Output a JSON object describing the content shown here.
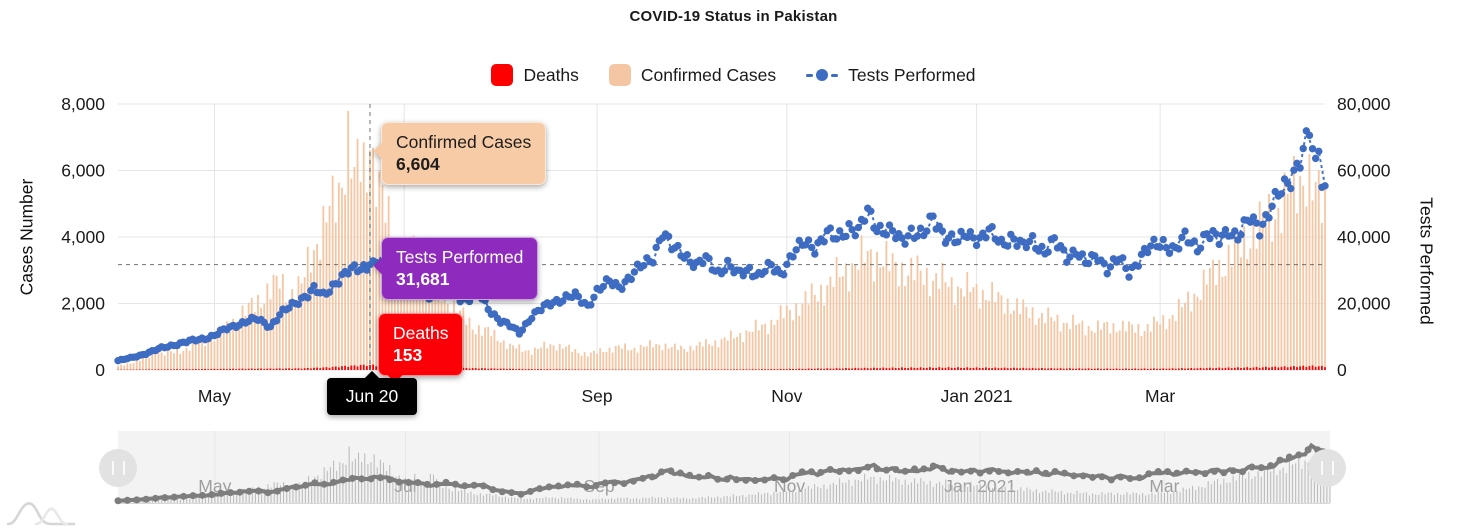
{
  "title": "COVID-19 Status in Pakistan",
  "legend": [
    {
      "label": "Deaths",
      "color": "#ff0000",
      "marker": "square"
    },
    {
      "label": "Confirmed Cases",
      "color": "#f5c6a3",
      "marker": "square"
    },
    {
      "label": "Tests Performed",
      "color": "#3d6cc2",
      "marker": "dash-dot"
    }
  ],
  "colors": {
    "confirmed": "#f5c6a3",
    "deaths": "#ff0000",
    "tests": "#3d6cc2",
    "grid": "#e5e5e5",
    "crosshair": "#5a5a5a",
    "nav_bg": "#f3f3f3",
    "nav_bar": "#b3b3b3",
    "nav_line": "#7d7d7d",
    "nav_label": "#9e9e9e",
    "axis_text": "#1a1a1a"
  },
  "axes": {
    "left": {
      "title": "Cases Number",
      "max": 8000,
      "ticks": [
        {
          "v": 8000,
          "label": "8,000"
        },
        {
          "v": 6000,
          "label": "6,000"
        },
        {
          "v": 4000,
          "label": "4,000"
        },
        {
          "v": 2000,
          "label": "2,000"
        },
        {
          "v": 0,
          "label": "0"
        }
      ]
    },
    "right": {
      "title": "Tests Performed",
      "max": 80000,
      "ticks": [
        {
          "v": 80000,
          "label": "80,000"
        },
        {
          "v": 60000,
          "label": "60,000"
        },
        {
          "v": 40000,
          "label": "40,000"
        },
        {
          "v": 20000,
          "label": "20,000"
        },
        {
          "v": 0,
          "label": "0"
        }
      ]
    },
    "x_gridline_days": [
      31,
      92,
      154,
      215,
      276,
      335
    ],
    "x_main_labels": [
      {
        "text": "May",
        "day": 31
      },
      {
        "text": "Sep",
        "day": 154
      },
      {
        "text": "Nov",
        "day": 215
      },
      {
        "text": "Jan 2021",
        "day": 276
      },
      {
        "text": "Mar",
        "day": 335
      }
    ]
  },
  "navigator": {
    "labels": [
      {
        "text": "May",
        "day": 31
      },
      {
        "text": "Jul",
        "day": 92
      },
      {
        "text": "Sep",
        "day": 154
      },
      {
        "text": "Nov",
        "day": 215
      },
      {
        "text": "Jan 2021",
        "day": 276
      },
      {
        "text": "Mar",
        "day": 335
      }
    ]
  },
  "tooltips": {
    "date": {
      "label": "Jun 20",
      "bg": "#000000",
      "text": "#ffffff"
    },
    "confirmed": {
      "label": "Confirmed Cases",
      "value": "6,604",
      "bg": "#f7cba6",
      "text": "#1d1d1d"
    },
    "tests": {
      "label": "Tests Performed",
      "value": "31,681",
      "bg": "#8e2abd",
      "text": "#ffffff"
    },
    "deaths": {
      "label": "Deaths",
      "value": "153",
      "bg": "#fb0006",
      "text": "#ffffff"
    }
  },
  "highlight": {
    "day": 81,
    "date_label": "Jun 20",
    "confirmed": 6604,
    "tests": 31681,
    "deaths": 153
  },
  "chart_data": {
    "type": "mixed",
    "x_unit": "day index (day 0 = 2020-03-31, day 388 = 2021-04-23)",
    "range_days": 388,
    "left_axis": {
      "label": "Cases Number",
      "range": [
        0,
        8000
      ]
    },
    "right_axis": {
      "label": "Tests Performed",
      "range": [
        0,
        80000
      ]
    },
    "series": [
      {
        "name": "Confirmed Cases",
        "type": "bar",
        "axis": "left",
        "color": "#f5c6a3",
        "points": [
          [
            0,
            120
          ],
          [
            6,
            260
          ],
          [
            10,
            420
          ],
          [
            12,
            780
          ],
          [
            14,
            480
          ],
          [
            18,
            540
          ],
          [
            22,
            640
          ],
          [
            25,
            760
          ],
          [
            28,
            880
          ],
          [
            31,
            1020
          ],
          [
            35,
            1260
          ],
          [
            38,
            1580
          ],
          [
            42,
            1820
          ],
          [
            45,
            2050
          ],
          [
            48,
            2380
          ],
          [
            52,
            2620
          ],
          [
            55,
            2300
          ],
          [
            59,
            2480
          ],
          [
            62,
            3480
          ],
          [
            65,
            4060
          ],
          [
            68,
            4720
          ],
          [
            71,
            5380
          ],
          [
            74,
            6920
          ],
          [
            76,
            5600
          ],
          [
            78,
            6340
          ],
          [
            80,
            5980
          ],
          [
            81,
            6604
          ],
          [
            83,
            5700
          ],
          [
            85,
            4960
          ],
          [
            88,
            4280
          ],
          [
            92,
            3060
          ],
          [
            95,
            3380
          ],
          [
            98,
            2760
          ],
          [
            101,
            3940
          ],
          [
            103,
            2480
          ],
          [
            106,
            2080
          ],
          [
            110,
            1680
          ],
          [
            114,
            1320
          ],
          [
            119,
            1140
          ],
          [
            123,
            920
          ],
          [
            126,
            720
          ],
          [
            130,
            610
          ],
          [
            133,
            580
          ],
          [
            137,
            700
          ],
          [
            140,
            760
          ],
          [
            144,
            680
          ],
          [
            147,
            560
          ],
          [
            151,
            480
          ],
          [
            154,
            520
          ],
          [
            158,
            640
          ],
          [
            161,
            690
          ],
          [
            165,
            620
          ],
          [
            168,
            700
          ],
          [
            172,
            740
          ],
          [
            175,
            760
          ],
          [
            179,
            660
          ],
          [
            182,
            640
          ],
          [
            186,
            720
          ],
          [
            189,
            780
          ],
          [
            193,
            860
          ],
          [
            196,
            940
          ],
          [
            200,
            1060
          ],
          [
            203,
            1160
          ],
          [
            207,
            1300
          ],
          [
            210,
            1420
          ],
          [
            213,
            1620
          ],
          [
            217,
            1820
          ],
          [
            221,
            2060
          ],
          [
            224,
            2260
          ],
          [
            228,
            2520
          ],
          [
            231,
            2780
          ],
          [
            235,
            3060
          ],
          [
            238,
            3240
          ],
          [
            241,
            3420
          ],
          [
            245,
            3380
          ],
          [
            248,
            3160
          ],
          [
            252,
            3020
          ],
          [
            255,
            2940
          ],
          [
            259,
            2880
          ],
          [
            262,
            2740
          ],
          [
            266,
            2620
          ],
          [
            269,
            2520
          ],
          [
            273,
            2420
          ],
          [
            276,
            2360
          ],
          [
            280,
            2280
          ],
          [
            283,
            2100
          ],
          [
            287,
            1980
          ],
          [
            290,
            1840
          ],
          [
            294,
            1720
          ],
          [
            297,
            1600
          ],
          [
            301,
            1520
          ],
          [
            304,
            1440
          ],
          [
            308,
            1360
          ],
          [
            311,
            1300
          ],
          [
            315,
            1260
          ],
          [
            318,
            1300
          ],
          [
            322,
            1330
          ],
          [
            325,
            1260
          ],
          [
            329,
            1240
          ],
          [
            332,
            1320
          ],
          [
            336,
            1450
          ],
          [
            339,
            1650
          ],
          [
            343,
            1950
          ],
          [
            346,
            2250
          ],
          [
            350,
            2700
          ],
          [
            353,
            3000
          ],
          [
            357,
            3350
          ],
          [
            360,
            3650
          ],
          [
            364,
            4050
          ],
          [
            367,
            4350
          ],
          [
            371,
            4650
          ],
          [
            374,
            4950
          ],
          [
            377,
            5350
          ],
          [
            380,
            5750
          ],
          [
            382,
            5950
          ],
          [
            384,
            5350
          ],
          [
            386,
            5150
          ],
          [
            388,
            5050
          ]
        ]
      },
      {
        "name": "Deaths",
        "type": "bar",
        "axis": "left",
        "color": "#ff0000",
        "points": [
          [
            0,
            8
          ],
          [
            14,
            20
          ],
          [
            31,
            30
          ],
          [
            45,
            38
          ],
          [
            59,
            46
          ],
          [
            68,
            80
          ],
          [
            74,
            118
          ],
          [
            81,
            153
          ],
          [
            88,
            110
          ],
          [
            95,
            92
          ],
          [
            103,
            74
          ],
          [
            112,
            56
          ],
          [
            119,
            44
          ],
          [
            130,
            28
          ],
          [
            140,
            20
          ],
          [
            154,
            12
          ],
          [
            168,
            10
          ],
          [
            182,
            12
          ],
          [
            196,
            16
          ],
          [
            210,
            24
          ],
          [
            224,
            38
          ],
          [
            238,
            54
          ],
          [
            252,
            66
          ],
          [
            266,
            72
          ],
          [
            280,
            64
          ],
          [
            294,
            52
          ],
          [
            308,
            42
          ],
          [
            322,
            36
          ],
          [
            336,
            40
          ],
          [
            350,
            56
          ],
          [
            364,
            74
          ],
          [
            374,
            92
          ],
          [
            380,
            108
          ],
          [
            384,
            118
          ],
          [
            388,
            102
          ]
        ]
      },
      {
        "name": "Tests Performed",
        "type": "line-dots",
        "axis": "right",
        "color": "#3d6cc2",
        "points": [
          [
            0,
            2800
          ],
          [
            4,
            3600
          ],
          [
            7,
            4400
          ],
          [
            11,
            5600
          ],
          [
            14,
            6600
          ],
          [
            18,
            7600
          ],
          [
            21,
            8200
          ],
          [
            25,
            9000
          ],
          [
            28,
            9600
          ],
          [
            31,
            10400
          ],
          [
            35,
            12400
          ],
          [
            38,
            13600
          ],
          [
            42,
            14800
          ],
          [
            45,
            15200
          ],
          [
            49,
            13200
          ],
          [
            52,
            16600
          ],
          [
            56,
            19400
          ],
          [
            59,
            21600
          ],
          [
            63,
            24200
          ],
          [
            66,
            22200
          ],
          [
            70,
            26600
          ],
          [
            74,
            29400
          ],
          [
            78,
            30800
          ],
          [
            81,
            31681
          ],
          [
            84,
            32200
          ],
          [
            87,
            30200
          ],
          [
            89,
            28400
          ],
          [
            92,
            26200
          ],
          [
            95,
            25400
          ],
          [
            98,
            23600
          ],
          [
            101,
            22400
          ],
          [
            105,
            24200
          ],
          [
            108,
            22600
          ],
          [
            112,
            21200
          ],
          [
            116,
            22600
          ],
          [
            119,
            18600
          ],
          [
            123,
            14800
          ],
          [
            126,
            13200
          ],
          [
            129,
            11200
          ],
          [
            133,
            16200
          ],
          [
            137,
            18800
          ],
          [
            140,
            20600
          ],
          [
            144,
            21800
          ],
          [
            147,
            22200
          ],
          [
            151,
            19400
          ],
          [
            154,
            23800
          ],
          [
            158,
            26400
          ],
          [
            161,
            25200
          ],
          [
            165,
            28200
          ],
          [
            168,
            30800
          ],
          [
            172,
            34200
          ],
          [
            175,
            41400
          ],
          [
            178,
            36600
          ],
          [
            182,
            35200
          ],
          [
            186,
            31200
          ],
          [
            189,
            33200
          ],
          [
            193,
            29600
          ],
          [
            196,
            31600
          ],
          [
            199,
            28600
          ],
          [
            203,
            30600
          ],
          [
            206,
            28200
          ],
          [
            210,
            31200
          ],
          [
            213,
            29200
          ],
          [
            217,
            34800
          ],
          [
            221,
            38400
          ],
          [
            224,
            37200
          ],
          [
            228,
            40800
          ],
          [
            231,
            39400
          ],
          [
            235,
            43400
          ],
          [
            238,
            41200
          ],
          [
            241,
            47600
          ],
          [
            244,
            43200
          ],
          [
            248,
            41600
          ],
          [
            252,
            38600
          ],
          [
            255,
            42200
          ],
          [
            259,
            40200
          ],
          [
            262,
            45600
          ],
          [
            266,
            40600
          ],
          [
            270,
            38200
          ],
          [
            273,
            41200
          ],
          [
            277,
            39600
          ],
          [
            280,
            41400
          ],
          [
            284,
            38200
          ],
          [
            287,
            40200
          ],
          [
            291,
            36600
          ],
          [
            294,
            39200
          ],
          [
            298,
            35600
          ],
          [
            301,
            38400
          ],
          [
            305,
            34200
          ],
          [
            308,
            36200
          ],
          [
            311,
            31600
          ],
          [
            315,
            34600
          ],
          [
            318,
            30600
          ],
          [
            322,
            33200
          ],
          [
            325,
            29200
          ],
          [
            329,
            34600
          ],
          [
            332,
            36600
          ],
          [
            336,
            38400
          ],
          [
            340,
            36200
          ],
          [
            343,
            39600
          ],
          [
            347,
            37200
          ],
          [
            350,
            41200
          ],
          [
            354,
            38600
          ],
          [
            357,
            42600
          ],
          [
            360,
            40200
          ],
          [
            364,
            45200
          ],
          [
            367,
            42800
          ],
          [
            371,
            49600
          ],
          [
            374,
            53200
          ],
          [
            377,
            57600
          ],
          [
            379,
            62400
          ],
          [
            381,
            66200
          ],
          [
            383,
            71200
          ],
          [
            385,
            60200
          ],
          [
            386,
            66600
          ],
          [
            387,
            57200
          ],
          [
            388,
            54600
          ]
        ]
      }
    ]
  }
}
